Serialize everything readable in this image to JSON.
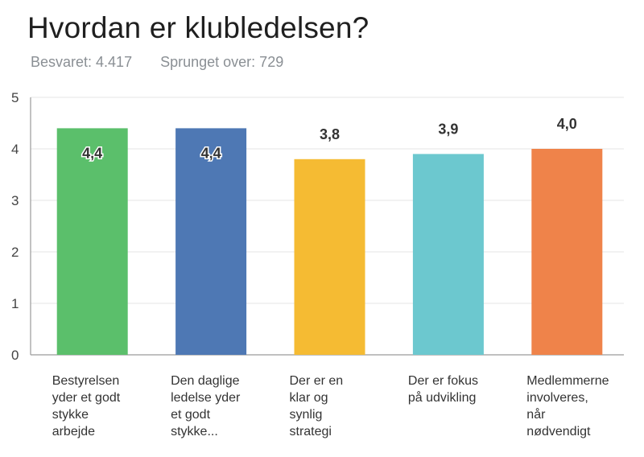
{
  "title": "Hvordan er klubledelsen?",
  "answered": "Besvaret: 4.417",
  "skipped": "Sprunget over: 729",
  "chart_data": {
    "type": "bar",
    "title": "Hvordan er klubledelsen?",
    "categories": [
      [
        "Bestyrelsen",
        "yder et godt",
        "stykke",
        "arbejde"
      ],
      [
        "Den daglige",
        "ledelse yder",
        "et godt",
        "stykke..."
      ],
      [
        "Der er en",
        "klar og",
        "synlig",
        "strategi"
      ],
      [
        "Der er fokus",
        "på udvikling"
      ],
      [
        "Medlemmerne",
        "involveres,",
        "når",
        "nødvendigt"
      ]
    ],
    "values": [
      4.4,
      4.4,
      3.8,
      3.9,
      4.0
    ],
    "value_labels": [
      "4,4",
      "4,4",
      "3,8",
      "3,9",
      "4,0"
    ],
    "colors": [
      "#5bbf6b",
      "#4e78b4",
      "#f5bb33",
      "#6cc8cf",
      "#ef834a"
    ],
    "ylim": [
      0,
      5
    ],
    "yticks": [
      0,
      1,
      2,
      3,
      4,
      5
    ],
    "grid": true,
    "legend": "none"
  }
}
